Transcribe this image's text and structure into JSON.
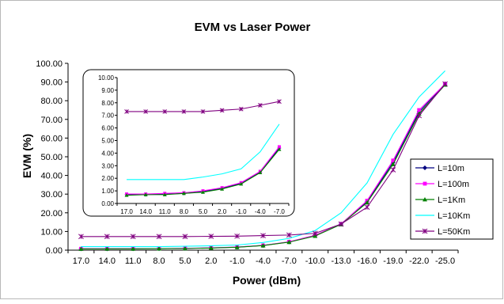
{
  "chart_data": {
    "type": "line",
    "title": "EVM vs Laser Power",
    "xlabel": "Power (dBm)",
    "ylabel": "EVM (%)",
    "categories": [
      "17.0",
      "14.0",
      "11.0",
      "8.0",
      "5.0",
      "2.0",
      "-1.0",
      "-4.0",
      "-7.0",
      "-10.0",
      "-13.0",
      "-16.0",
      "-19.0",
      "-22.0",
      "-25.0"
    ],
    "ylim": [
      0,
      100
    ],
    "yticks": [
      "0.00",
      "10.00",
      "20.00",
      "30.00",
      "40.00",
      "50.00",
      "60.00",
      "70.00",
      "80.00",
      "90.00",
      "100.00"
    ],
    "legend_position": "right",
    "series": [
      {
        "name": "L=10m",
        "color": "#000080",
        "marker": "diamond",
        "values": [
          0.7,
          0.7,
          0.75,
          0.8,
          0.95,
          1.2,
          1.6,
          2.5,
          4.4,
          7.8,
          14.0,
          26.0,
          47.0,
          74.0,
          89.0
        ]
      },
      {
        "name": "L=100m",
        "color": "#ff00ff",
        "marker": "square",
        "values": [
          0.75,
          0.75,
          0.8,
          0.85,
          1.0,
          1.25,
          1.65,
          2.55,
          4.5,
          8.0,
          14.0,
          26.5,
          48.0,
          75.0,
          89.0
        ]
      },
      {
        "name": "L=1Km",
        "color": "#008000",
        "marker": "triangle",
        "values": [
          0.65,
          0.7,
          0.7,
          0.8,
          0.9,
          1.15,
          1.55,
          2.45,
          4.3,
          7.6,
          13.8,
          25.5,
          46.0,
          73.0,
          88.5
        ]
      },
      {
        "name": "L=10Km",
        "color": "#00ffff",
        "marker": "none",
        "values": [
          1.9,
          1.9,
          1.9,
          1.9,
          2.1,
          2.35,
          2.75,
          4.1,
          6.3,
          10.5,
          20.0,
          36.0,
          62.0,
          82.0,
          96.0
        ]
      },
      {
        "name": "L=50Km",
        "color": "#800080",
        "marker": "star",
        "values": [
          7.3,
          7.3,
          7.3,
          7.3,
          7.3,
          7.4,
          7.5,
          7.8,
          8.1,
          9.0,
          14.0,
          23.0,
          43.0,
          72.0,
          89.0
        ]
      }
    ],
    "inset": {
      "categories": [
        "17.0",
        "14.0",
        "11.0",
        "8.0",
        "5.0",
        "2.0",
        "-1.0",
        "-4.0",
        "-7.0"
      ],
      "ylim": [
        0,
        10
      ],
      "yticks": [
        "0.00",
        "1.00",
        "2.00",
        "3.00",
        "4.00",
        "5.00",
        "6.00",
        "7.00",
        "8.00",
        "9.00",
        "10.00"
      ]
    }
  }
}
